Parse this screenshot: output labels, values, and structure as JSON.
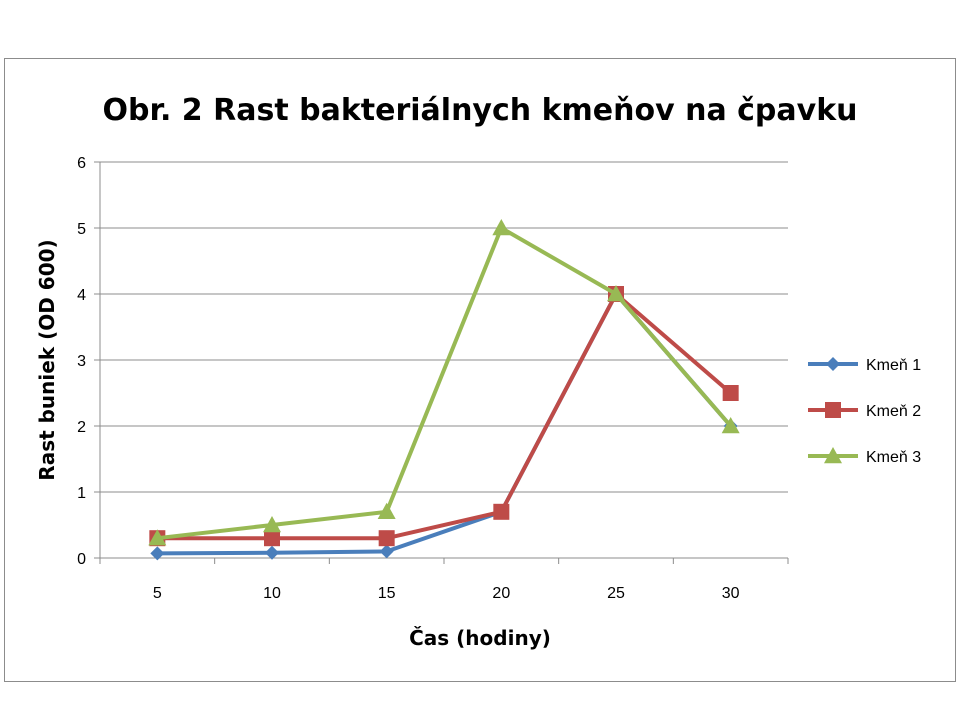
{
  "chart_data": {
    "type": "line",
    "title": "Obr. 2 Rast bakteriálnych kmeňov na čpavku",
    "xlabel": "Čas (hodiny)",
    "ylabel": "Rast buniek (OD 600)",
    "x": [
      "5",
      "10",
      "15",
      "20",
      "25",
      "30"
    ],
    "ylim": [
      0,
      6
    ],
    "yticks": [
      "0",
      "1",
      "2",
      "3",
      "4",
      "5",
      "6"
    ],
    "grid": true,
    "legend_position": "right",
    "series": [
      {
        "name": "Kmeň 1",
        "color": "#4a7ebb",
        "marker": "diamond",
        "values": [
          0.07,
          0.08,
          0.1,
          0.7,
          4.0,
          2.0
        ]
      },
      {
        "name": "Kmeň 2",
        "color": "#be4b48",
        "marker": "square",
        "values": [
          0.3,
          0.3,
          0.3,
          0.7,
          4.0,
          2.5
        ]
      },
      {
        "name": "Kmeň 3",
        "color": "#98b954",
        "marker": "triangle",
        "values": [
          0.3,
          0.5,
          0.7,
          5.0,
          4.0,
          2.0
        ]
      }
    ]
  }
}
